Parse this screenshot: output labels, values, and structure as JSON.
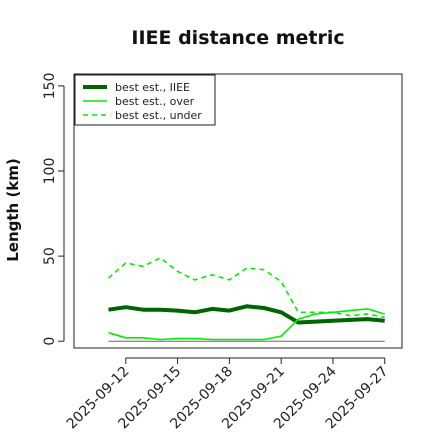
{
  "chart_data": {
    "type": "line",
    "title": "IIEE distance metric",
    "xlabel": "",
    "ylabel": "Length (km)",
    "ylim": [
      -4,
      157
    ],
    "xlim": [
      "2025-09-09",
      "2025-09-28"
    ],
    "yticks": [
      0,
      50,
      100,
      150
    ],
    "xticks": [
      "2025-09-12",
      "2025-09-15",
      "2025-09-18",
      "2025-09-21",
      "2025-09-24",
      "2025-09-27"
    ],
    "x": [
      "2025-09-11",
      "2025-09-12",
      "2025-09-13",
      "2025-09-14",
      "2025-09-15",
      "2025-09-16",
      "2025-09-17",
      "2025-09-18",
      "2025-09-19",
      "2025-09-20",
      "2025-09-21",
      "2025-09-22",
      "2025-09-23",
      "2025-09-24",
      "2025-09-25",
      "2025-09-26",
      "2025-09-27"
    ],
    "reference_line": {
      "y": 0,
      "color": "#666666"
    },
    "legend": {
      "position": "top-left"
    },
    "series": [
      {
        "name": "best est., IIEE",
        "color": "#006400",
        "style": "solid",
        "width": 4,
        "values": [
          18.5,
          20,
          18.5,
          18.5,
          18,
          17,
          19,
          18,
          20.5,
          19.5,
          17,
          11,
          11.5,
          12,
          12.5,
          13,
          12
        ]
      },
      {
        "name": "best est., over",
        "color": "#00ee00",
        "style": "solid",
        "width": 1.6,
        "values": [
          5,
          2,
          2,
          1,
          1.5,
          1.5,
          1,
          1,
          1,
          1,
          3,
          13,
          16,
          17,
          18,
          19,
          16
        ]
      },
      {
        "name": "best est., under",
        "color": "#00ee00",
        "style": "dashed",
        "width": 1.6,
        "values": [
          37,
          46,
          44,
          49,
          41,
          36,
          39,
          36,
          43,
          42,
          35,
          17,
          17,
          17,
          15,
          16,
          14
        ]
      }
    ]
  }
}
